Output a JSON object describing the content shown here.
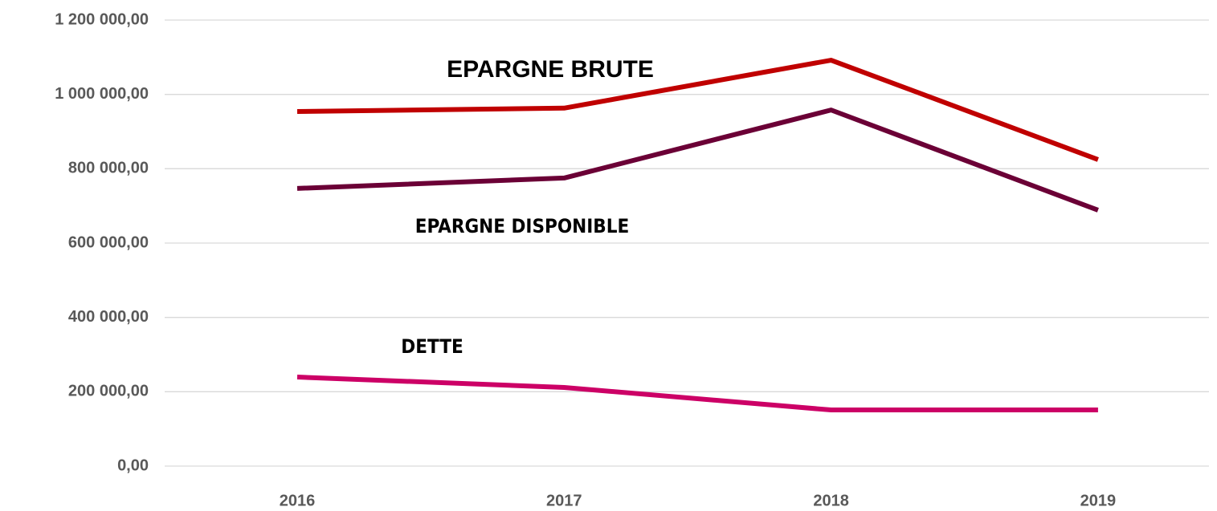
{
  "chart_data": {
    "type": "line",
    "categories": [
      "2016",
      "2017",
      "2018",
      "2019"
    ],
    "series": [
      {
        "name": "EPARGNE BRUTE",
        "color": "#c00000",
        "values": [
          954000,
          963000,
          1092000,
          824500
        ]
      },
      {
        "name": "EPARGNE DISPONIBLE",
        "color": "#6b0036",
        "values": [
          747000,
          775000,
          958000,
          688500
        ]
      },
      {
        "name": "DETTE",
        "color": "#cc0066",
        "values": [
          239500,
          211500,
          151000,
          151000
        ]
      }
    ],
    "ylim": [
      0,
      1200000
    ],
    "yticks": [
      {
        "value": 0,
        "label": "0,00"
      },
      {
        "value": 200000,
        "label": "200 000,00"
      },
      {
        "value": 400000,
        "label": "400 000,00"
      },
      {
        "value": 600000,
        "label": "600 000,00"
      },
      {
        "value": 800000,
        "label": "800 000,00"
      },
      {
        "value": 1000000,
        "label": "1 000 000,00"
      },
      {
        "value": 1200000,
        "label": "1 200 000,00"
      }
    ],
    "grid": true
  }
}
